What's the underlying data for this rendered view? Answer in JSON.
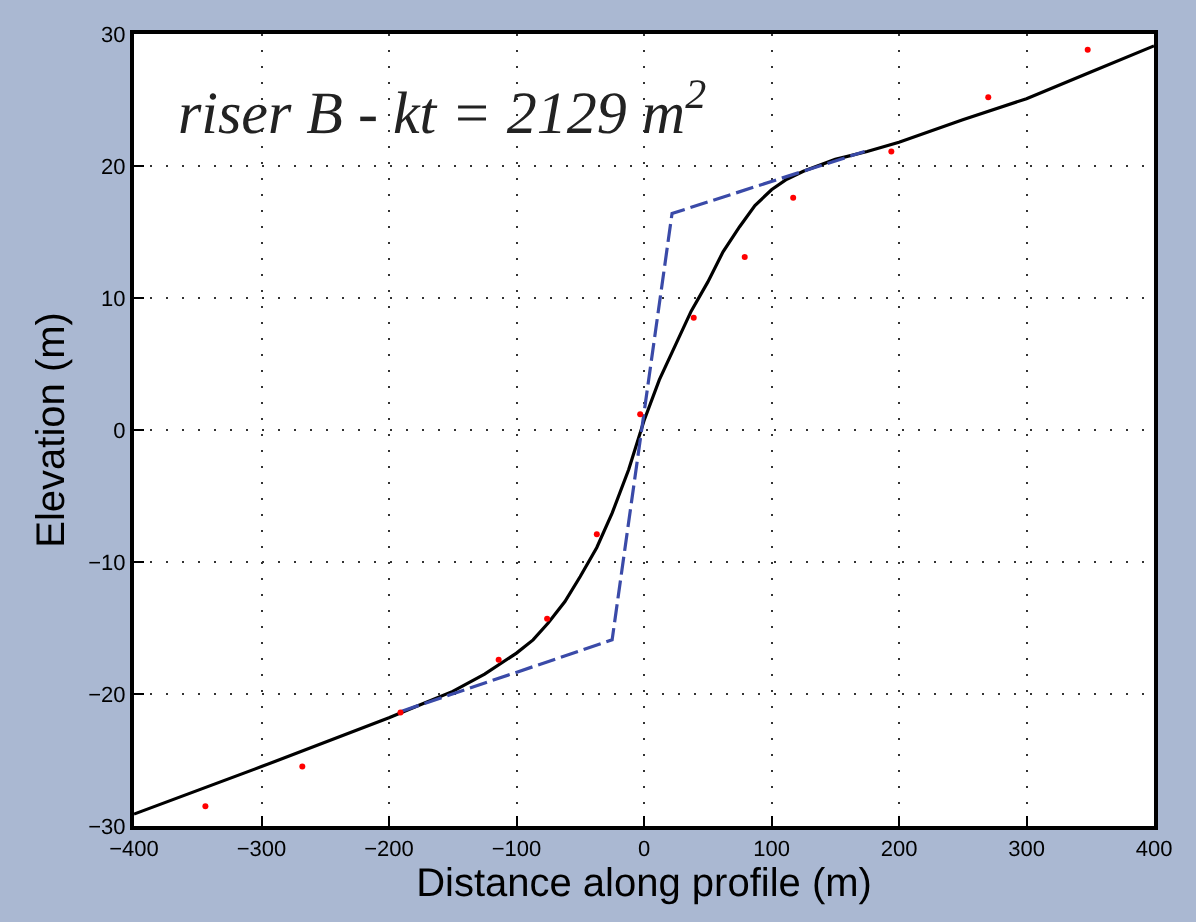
{
  "chart_data": {
    "type": "line",
    "title": "riser B - kt = 2129 m$^{2}$",
    "xlabel": "Distance along profile (m)",
    "ylabel": "Elevation (m)",
    "xlim": [
      -400,
      400
    ],
    "ylim": [
      -30,
      30
    ],
    "xticks": [
      -400,
      -300,
      -200,
      -100,
      0,
      100,
      200,
      300,
      400
    ],
    "yticks": [
      -30,
      -20,
      -10,
      0,
      10,
      20,
      30
    ],
    "grid": true,
    "series": [
      {
        "color": "#000000",
        "line_style": "solid",
        "marker": "none",
        "x": [
          -400,
          -300,
          -200,
          -175,
          -150,
          -125,
          -100,
          -87,
          -75,
          -62,
          -50,
          -37,
          -25,
          -12,
          0,
          12,
          25,
          37,
          50,
          62,
          75,
          87,
          100,
          112,
          125,
          150,
          175,
          200,
          250,
          300,
          350,
          400
        ],
        "values": [
          -29.1,
          -25.5,
          -21.8,
          -20.8,
          -19.8,
          -18.5,
          -16.9,
          -15.9,
          -14.6,
          -13.0,
          -11.1,
          -8.9,
          -6.3,
          -3.0,
          0.7,
          3.8,
          6.5,
          9.0,
          11.2,
          13.5,
          15.4,
          17.0,
          18.2,
          19.0,
          19.6,
          20.5,
          21.1,
          21.8,
          23.5,
          25.1,
          27.1,
          29.1
        ]
      },
      {
        "type": "line",
        "color": "#3a4aa8",
        "line_style": "dashed",
        "marker": "none",
        "x": [
          -190,
          -25,
          22,
          173
        ],
        "values": [
          -21.3,
          -15.9,
          16.4,
          21.1
        ]
      },
      {
        "type": "scatter",
        "color": "#ff0000",
        "marker": "circle",
        "x": [
          -344,
          -268,
          -191,
          -114,
          -76,
          -37,
          -3,
          39,
          79,
          117,
          194,
          270,
          348
        ],
        "values": [
          -28.5,
          -25.5,
          -21.4,
          -17.4,
          -14.3,
          -7.9,
          1.2,
          8.5,
          13.1,
          17.6,
          21.1,
          25.2,
          28.8
        ]
      }
    ]
  }
}
